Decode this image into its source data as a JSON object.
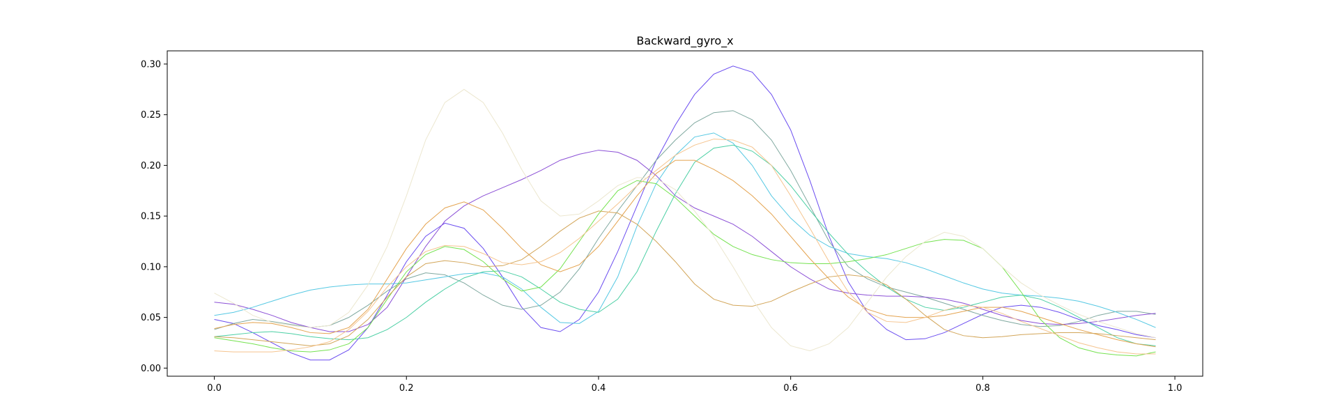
{
  "chart_data": {
    "type": "line",
    "title": "Backward_gyro_x",
    "xlabel": "",
    "ylabel": "",
    "xlim": [
      -0.049,
      1.029
    ],
    "ylim": [
      -0.008,
      0.313
    ],
    "xticks": [
      0.0,
      0.2,
      0.4,
      0.6,
      0.8,
      1.0
    ],
    "xtick_labels": [
      "0.0",
      "0.2",
      "0.4",
      "0.6",
      "0.8",
      "1.0"
    ],
    "yticks": [
      0.0,
      0.05,
      0.1,
      0.15,
      0.2,
      0.25,
      0.3
    ],
    "ytick_labels": [
      "0.00",
      "0.05",
      "0.10",
      "0.15",
      "0.20",
      "0.25",
      "0.30"
    ],
    "grid": false,
    "legend": "none",
    "x": [
      0.0,
      0.02,
      0.04,
      0.06,
      0.08,
      0.1,
      0.12,
      0.14,
      0.16,
      0.18,
      0.2,
      0.22,
      0.24,
      0.26,
      0.28,
      0.3,
      0.32,
      0.34,
      0.36,
      0.38,
      0.4,
      0.42,
      0.44,
      0.46,
      0.48,
      0.5,
      0.52,
      0.54,
      0.56,
      0.58,
      0.6,
      0.62,
      0.64,
      0.66,
      0.68,
      0.7,
      0.72,
      0.74,
      0.76,
      0.78,
      0.8,
      0.82,
      0.84,
      0.86,
      0.88,
      0.9,
      0.92,
      0.94,
      0.96,
      0.98
    ],
    "series": [
      {
        "color": "#6a4cf0",
        "values": [
          0.048,
          0.044,
          0.035,
          0.025,
          0.015,
          0.008,
          0.008,
          0.018,
          0.04,
          0.072,
          0.105,
          0.13,
          0.143,
          0.138,
          0.118,
          0.09,
          0.06,
          0.04,
          0.036,
          0.048,
          0.075,
          0.115,
          0.16,
          0.205,
          0.24,
          0.27,
          0.29,
          0.298,
          0.292,
          0.27,
          0.235,
          0.185,
          0.13,
          0.085,
          0.055,
          0.038,
          0.028,
          0.029,
          0.035,
          0.044,
          0.053,
          0.06,
          0.062,
          0.06,
          0.055,
          0.048,
          0.042,
          0.038,
          0.033,
          0.03
        ]
      },
      {
        "color": "#7fa89f",
        "values": [
          0.038,
          0.044,
          0.048,
          0.046,
          0.043,
          0.04,
          0.042,
          0.05,
          0.062,
          0.076,
          0.088,
          0.094,
          0.092,
          0.084,
          0.072,
          0.062,
          0.058,
          0.062,
          0.075,
          0.098,
          0.128,
          0.155,
          0.18,
          0.205,
          0.225,
          0.242,
          0.252,
          0.254,
          0.245,
          0.225,
          0.195,
          0.16,
          0.125,
          0.1,
          0.088,
          0.08,
          0.075,
          0.07,
          0.064,
          0.058,
          0.052,
          0.047,
          0.043,
          0.041,
          0.042,
          0.046,
          0.052,
          0.056,
          0.056,
          0.053
        ]
      },
      {
        "color": "#8b4fd6",
        "values": [
          0.065,
          0.063,
          0.058,
          0.052,
          0.045,
          0.04,
          0.036,
          0.036,
          0.043,
          0.06,
          0.09,
          0.12,
          0.145,
          0.16,
          0.17,
          0.178,
          0.186,
          0.195,
          0.205,
          0.211,
          0.215,
          0.213,
          0.205,
          0.19,
          0.17,
          0.158,
          0.15,
          0.142,
          0.13,
          0.115,
          0.1,
          0.088,
          0.078,
          0.074,
          0.072,
          0.071,
          0.071,
          0.07,
          0.068,
          0.064,
          0.058,
          0.052,
          0.047,
          0.044,
          0.043,
          0.044,
          0.046,
          0.049,
          0.052,
          0.054
        ]
      },
      {
        "color": "#55c8e3",
        "values": [
          0.052,
          0.055,
          0.06,
          0.066,
          0.072,
          0.077,
          0.08,
          0.082,
          0.083,
          0.083,
          0.084,
          0.087,
          0.09,
          0.093,
          0.094,
          0.09,
          0.078,
          0.06,
          0.045,
          0.044,
          0.056,
          0.09,
          0.14,
          0.182,
          0.21,
          0.228,
          0.232,
          0.222,
          0.2,
          0.17,
          0.148,
          0.131,
          0.12,
          0.113,
          0.11,
          0.108,
          0.104,
          0.098,
          0.091,
          0.084,
          0.078,
          0.074,
          0.072,
          0.071,
          0.069,
          0.066,
          0.061,
          0.055,
          0.048,
          0.04
        ]
      },
      {
        "color": "#4bcfa4",
        "values": [
          0.031,
          0.033,
          0.035,
          0.036,
          0.034,
          0.031,
          0.029,
          0.028,
          0.03,
          0.038,
          0.05,
          0.065,
          0.078,
          0.089,
          0.095,
          0.096,
          0.09,
          0.078,
          0.065,
          0.058,
          0.055,
          0.068,
          0.095,
          0.135,
          0.172,
          0.203,
          0.217,
          0.22,
          0.214,
          0.2,
          0.18,
          0.156,
          0.133,
          0.112,
          0.095,
          0.08,
          0.068,
          0.06,
          0.057,
          0.06,
          0.065,
          0.07,
          0.072,
          0.068,
          0.06,
          0.05,
          0.04,
          0.03,
          0.024,
          0.022
        ]
      },
      {
        "color": "#74e24f",
        "values": [
          0.03,
          0.027,
          0.024,
          0.02,
          0.017,
          0.016,
          0.018,
          0.024,
          0.04,
          0.068,
          0.095,
          0.112,
          0.12,
          0.117,
          0.105,
          0.088,
          0.076,
          0.08,
          0.098,
          0.125,
          0.152,
          0.175,
          0.185,
          0.182,
          0.168,
          0.15,
          0.132,
          0.12,
          0.112,
          0.107,
          0.104,
          0.103,
          0.103,
          0.105,
          0.108,
          0.112,
          0.118,
          0.124,
          0.127,
          0.126,
          0.118,
          0.1,
          0.075,
          0.048,
          0.03,
          0.02,
          0.015,
          0.013,
          0.012,
          0.016
        ]
      },
      {
        "color": "#e4a34f",
        "values": [
          0.039,
          0.043,
          0.045,
          0.044,
          0.04,
          0.035,
          0.034,
          0.04,
          0.058,
          0.088,
          0.118,
          0.142,
          0.158,
          0.164,
          0.156,
          0.138,
          0.118,
          0.102,
          0.095,
          0.102,
          0.12,
          0.145,
          0.17,
          0.192,
          0.205,
          0.205,
          0.196,
          0.185,
          0.17,
          0.152,
          0.13,
          0.108,
          0.088,
          0.07,
          0.058,
          0.052,
          0.05,
          0.05,
          0.052,
          0.056,
          0.06,
          0.06,
          0.056,
          0.05,
          0.044,
          0.038,
          0.033,
          0.028,
          0.024,
          0.021
        ]
      },
      {
        "color": "#d2a558",
        "values": [
          0.031,
          0.03,
          0.028,
          0.026,
          0.024,
          0.022,
          0.024,
          0.032,
          0.048,
          0.07,
          0.09,
          0.103,
          0.106,
          0.104,
          0.1,
          0.101,
          0.107,
          0.12,
          0.135,
          0.148,
          0.155,
          0.153,
          0.142,
          0.125,
          0.105,
          0.083,
          0.068,
          0.062,
          0.061,
          0.066,
          0.075,
          0.083,
          0.09,
          0.092,
          0.09,
          0.082,
          0.068,
          0.052,
          0.038,
          0.032,
          0.03,
          0.031,
          0.033,
          0.034,
          0.035,
          0.035,
          0.034,
          0.032,
          0.03,
          0.028
        ]
      },
      {
        "color": "#f5c48e",
        "values": [
          0.017,
          0.016,
          0.016,
          0.016,
          0.018,
          0.021,
          0.026,
          0.038,
          0.056,
          0.08,
          0.1,
          0.115,
          0.121,
          0.12,
          0.113,
          0.104,
          0.102,
          0.105,
          0.114,
          0.128,
          0.145,
          0.162,
          0.18,
          0.195,
          0.21,
          0.22,
          0.226,
          0.225,
          0.218,
          0.2,
          0.17,
          0.138,
          0.105,
          0.075,
          0.055,
          0.046,
          0.045,
          0.05,
          0.057,
          0.062,
          0.06,
          0.054,
          0.046,
          0.039,
          0.032,
          0.025,
          0.02,
          0.016,
          0.014,
          0.014
        ]
      },
      {
        "color": "#ece7cf",
        "values": [
          0.074,
          0.064,
          0.052,
          0.045,
          0.042,
          0.04,
          0.042,
          0.055,
          0.082,
          0.12,
          0.17,
          0.225,
          0.262,
          0.275,
          0.262,
          0.232,
          0.196,
          0.165,
          0.15,
          0.152,
          0.165,
          0.18,
          0.188,
          0.187,
          0.176,
          0.155,
          0.13,
          0.1,
          0.068,
          0.04,
          0.022,
          0.017,
          0.024,
          0.04,
          0.065,
          0.09,
          0.11,
          0.125,
          0.134,
          0.13,
          0.118,
          0.1,
          0.084,
          0.072,
          0.062,
          0.053,
          0.046,
          0.04,
          0.034,
          0.03
        ]
      }
    ]
  }
}
